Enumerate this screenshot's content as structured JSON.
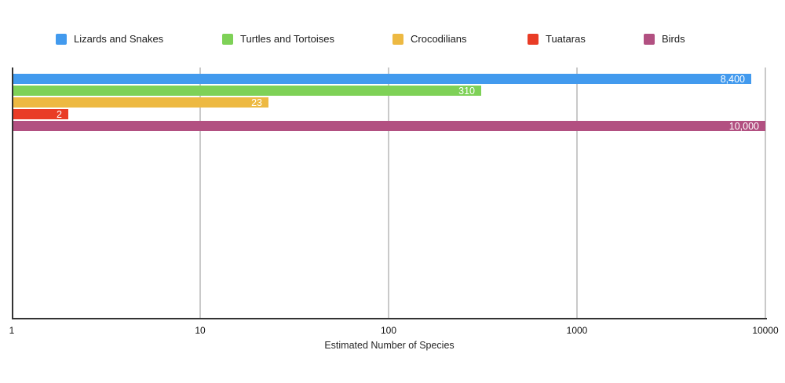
{
  "chart_data": {
    "type": "bar",
    "orientation": "horizontal",
    "title": "",
    "xlabel": "Estimated Number of Species",
    "x_scale": "log",
    "xlim": [
      1,
      10000
    ],
    "x_ticks": [
      1,
      10,
      100,
      1000,
      10000
    ],
    "x_tick_labels": [
      "1",
      "10",
      "100",
      "1000",
      "10000"
    ],
    "grid": true,
    "legend_position": "top",
    "categories": [
      "Lizards and Snakes",
      "Turtles and Tortoises",
      "Crocodilians",
      "Tuataras",
      "Birds"
    ],
    "values": [
      8400,
      310,
      23,
      2,
      10000
    ],
    "value_labels": [
      "8,400",
      "310",
      "23",
      "2",
      "10,000"
    ],
    "colors": [
      "#429AEE",
      "#7ED157",
      "#EDB942",
      "#E93C26",
      "#B25081"
    ],
    "grid_color": "#C9C9C9",
    "axis_color": "#333333",
    "value_label_color": "#FFFFFF"
  }
}
